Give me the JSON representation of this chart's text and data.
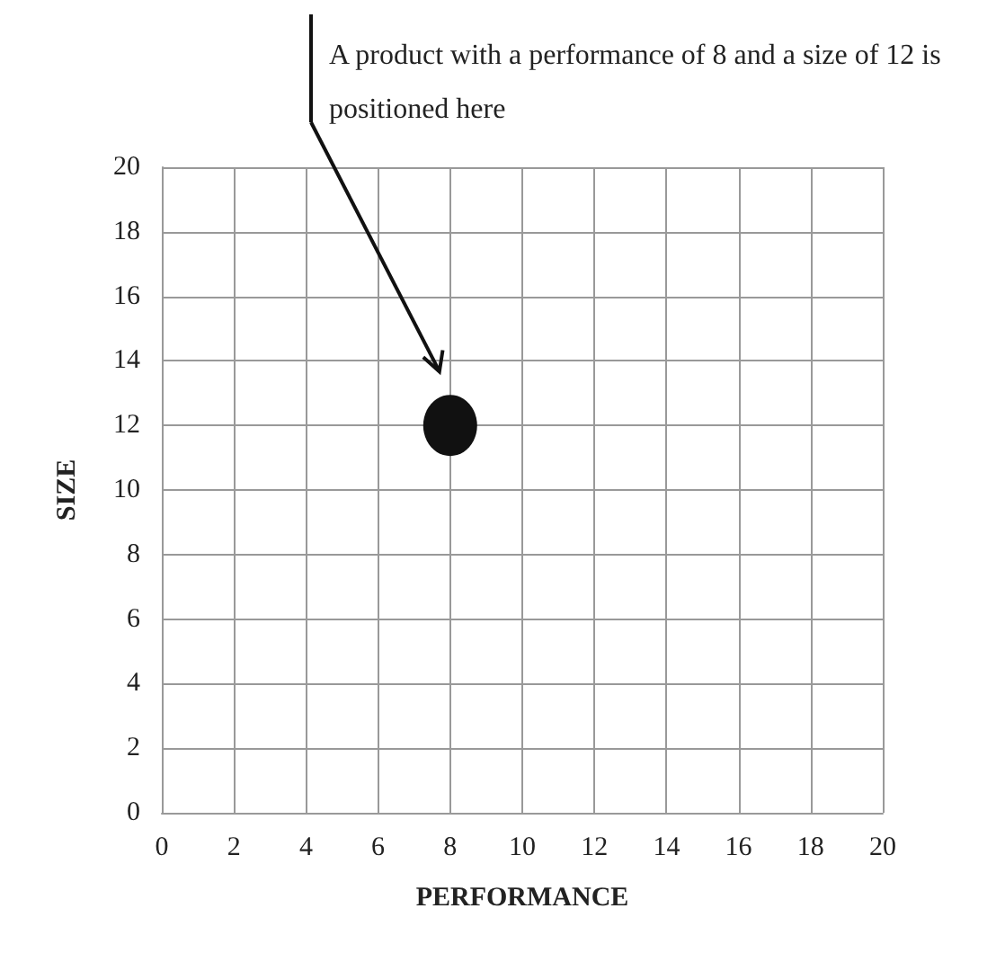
{
  "chart_data": {
    "type": "scatter",
    "x": [
      8
    ],
    "values": [
      12
    ],
    "color": "#111111",
    "marker": "circle",
    "xlabel": "PERFORMANCE",
    "ylabel": "SIZE",
    "xlim": [
      0,
      20
    ],
    "ylim": [
      0,
      20
    ],
    "xticks": [
      0,
      2,
      4,
      6,
      8,
      10,
      12,
      14,
      16,
      18,
      20
    ],
    "yticks": [
      0,
      2,
      4,
      6,
      8,
      10,
      12,
      14,
      16,
      18,
      20
    ],
    "grid": true,
    "annotations": [
      "A product with a performance of 8 and a size of 12 is positioned here"
    ]
  }
}
